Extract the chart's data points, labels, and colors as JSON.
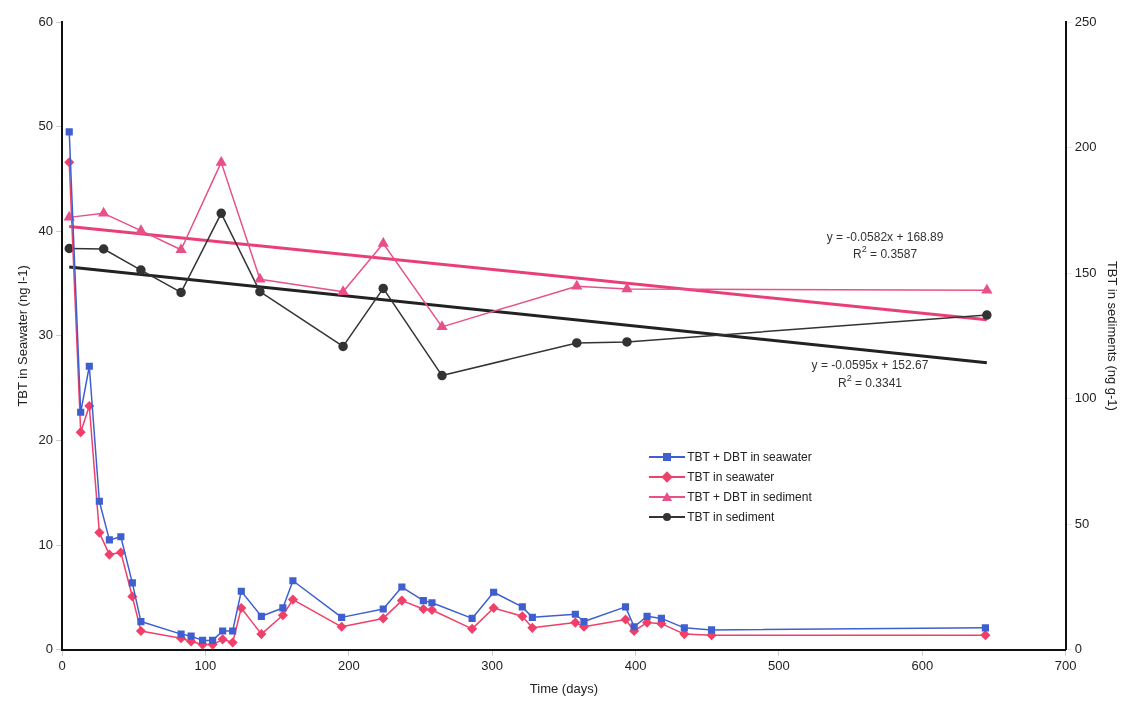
{
  "chart_data": {
    "type": "line",
    "xlabel": "Time (days)",
    "ylabel": "TBT in Seawater (ng l-1)",
    "y2label": "TBT in sediments (ng g-1)",
    "xlim": [
      0,
      700
    ],
    "xticks": [
      0,
      100,
      200,
      300,
      400,
      500,
      600,
      700
    ],
    "ylim": [
      0,
      60
    ],
    "yticks": [
      0,
      10,
      20,
      30,
      40,
      50,
      60
    ],
    "y2lim": [
      0,
      250
    ],
    "y2ticks": [
      0,
      50,
      100,
      150,
      200,
      250
    ],
    "grid": false,
    "legend": "right",
    "annotations": [
      "y = -0.0582x + 168.89",
      "R$^{2}$ = 0.3587",
      "y = -0.0595x + 152.67",
      "R$^{2}$ = 0.3341"
    ],
    "series": [
      {
        "name": "TBT + DBT in seawater",
        "color": "#3f5fd0",
        "marker": "square",
        "x": [
          5,
          13,
          19,
          26,
          33,
          41,
          49,
          55,
          83,
          90,
          98,
          105,
          112,
          119,
          125,
          139,
          154,
          161,
          195,
          224,
          237,
          252,
          258,
          286,
          301,
          321,
          328,
          358,
          364,
          393,
          399,
          408,
          418,
          434,
          453,
          644
        ],
        "values": [
          49.5,
          22.7,
          27.1,
          14.2,
          10.5,
          10.8,
          6.4,
          2.7,
          1.5,
          1.3,
          0.9,
          0.9,
          1.8,
          1.8,
          5.6,
          3.2,
          4.0,
          6.6,
          3.1,
          3.9,
          6.0,
          4.7,
          4.5,
          3.0,
          5.5,
          4.1,
          3.1,
          3.4,
          2.7,
          4.1,
          2.2,
          3.2,
          3.0,
          2.1,
          1.9,
          2.1
        ]
      },
      {
        "name": "TBT in seawater",
        "color": "#f0406a",
        "marker": "diamond",
        "x": [
          5,
          13,
          19,
          26,
          33,
          41,
          49,
          55,
          83,
          90,
          98,
          105,
          112,
          119,
          125,
          139,
          154,
          161,
          195,
          224,
          237,
          252,
          258,
          286,
          301,
          321,
          328,
          358,
          364,
          393,
          399,
          408,
          418,
          434,
          453,
          644
        ],
        "values": [
          46.6,
          20.8,
          23.3,
          11.2,
          9.1,
          9.3,
          5.1,
          1.8,
          1.1,
          0.8,
          0.5,
          0.5,
          1.0,
          0.7,
          4.0,
          1.5,
          3.3,
          4.8,
          2.2,
          3.0,
          4.7,
          3.9,
          3.8,
          2.0,
          4.0,
          3.2,
          2.1,
          2.6,
          2.2,
          2.9,
          1.8,
          2.6,
          2.5,
          1.5,
          1.4,
          1.4
        ]
      },
      {
        "name": "TBT + DBT in sediment",
        "color": "#e8508a",
        "marker": "triangle",
        "axis": "y2",
        "x": [
          5,
          29,
          55,
          83,
          111,
          138,
          196,
          224,
          265,
          359,
          394,
          645
        ],
        "values": [
          172.2,
          173.8,
          166.9,
          159.3,
          194.1,
          147.6,
          142.6,
          161.8,
          128.6,
          144.8,
          143.7,
          143.2
        ]
      },
      {
        "name": "TBT in sediment",
        "color": "#333333",
        "marker": "circle",
        "axis": "y2",
        "x": [
          5,
          29,
          55,
          83,
          111,
          138,
          196,
          224,
          265,
          359,
          394,
          645
        ],
        "values": [
          159.8,
          159.6,
          151.2,
          142.3,
          173.8,
          142.6,
          120.8,
          143.9,
          109.2,
          122.2,
          122.6,
          133.3
        ]
      },
      {
        "type": "line",
        "color": "#e83e7a",
        "marker": "none",
        "axis": "y2",
        "x": [
          5,
          645
        ],
        "values": [
          168.6,
          131.4
        ]
      },
      {
        "type": "line",
        "color": "#222222",
        "marker": "none",
        "axis": "y2",
        "x": [
          5,
          645
        ],
        "values": [
          152.4,
          114.3
        ]
      }
    ]
  }
}
